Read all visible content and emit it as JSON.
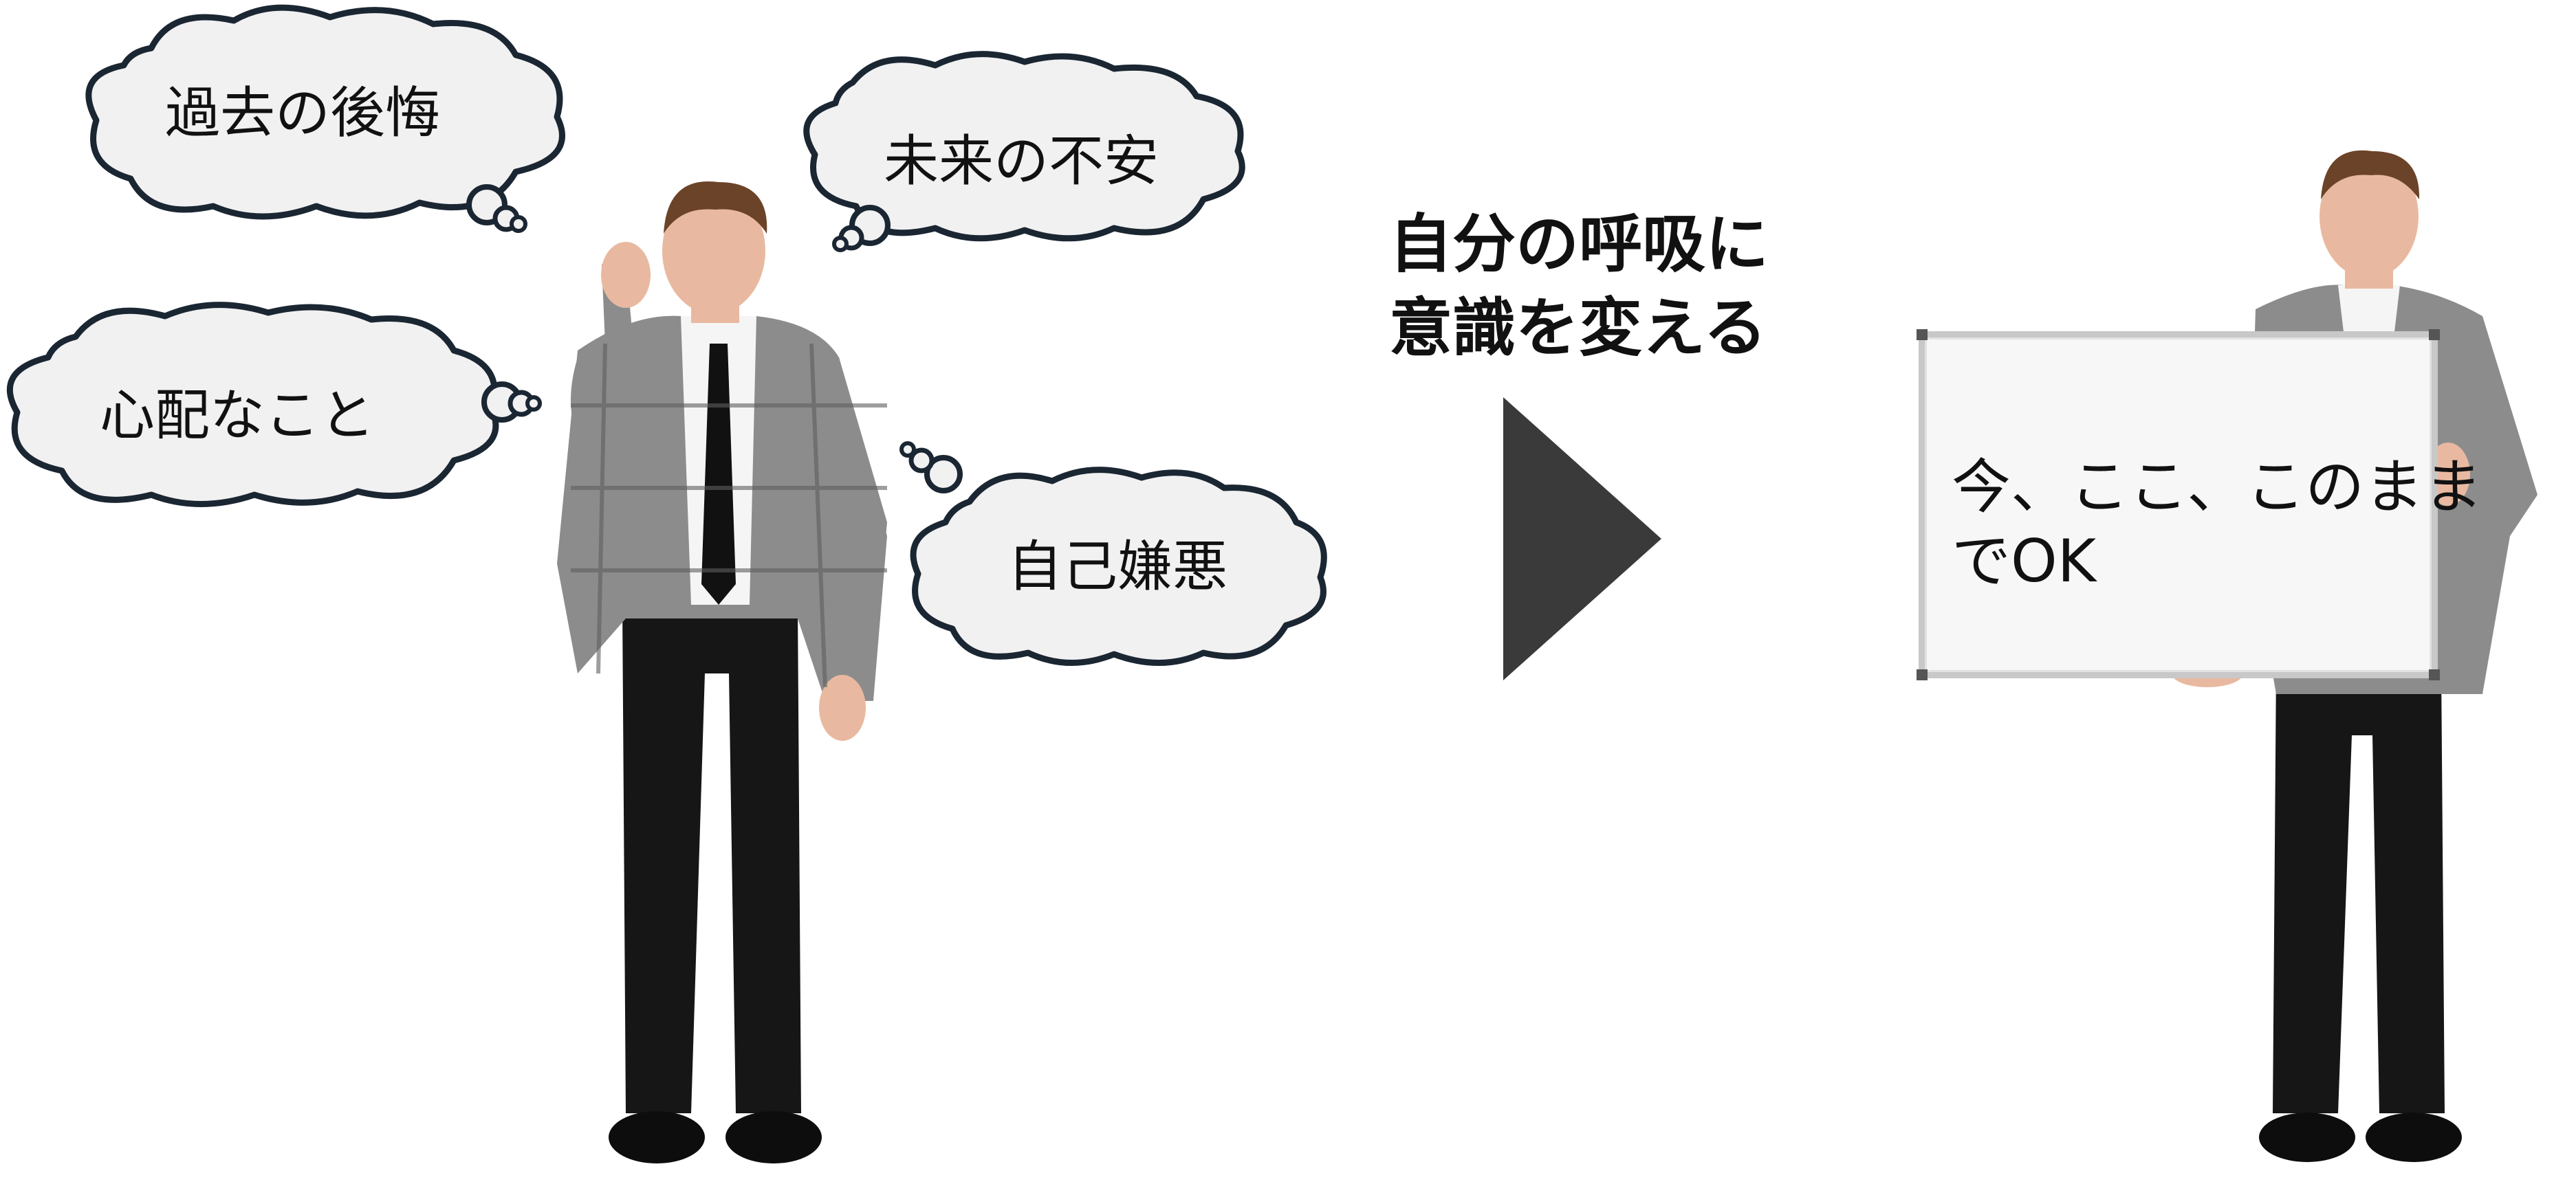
{
  "thought_bubbles": [
    {
      "text": "過去の後悔"
    },
    {
      "text": "未来の不安"
    },
    {
      "text": "心配なこと"
    },
    {
      "text": "自己嫌悪"
    }
  ],
  "headline": {
    "line1": "自分の呼吸に",
    "line2": "意識を変える"
  },
  "whiteboard": {
    "line1": "今、ここ、このまま",
    "line2": "でOK"
  },
  "colors": {
    "bubble_fill": "#f1f1f1",
    "bubble_stroke": "#1b2633",
    "arrow": "#3a3a3a",
    "jacket": "#8c8c8c",
    "trousers": "#161616",
    "hair": "#6b4328",
    "skin": "#e8b9a0"
  }
}
